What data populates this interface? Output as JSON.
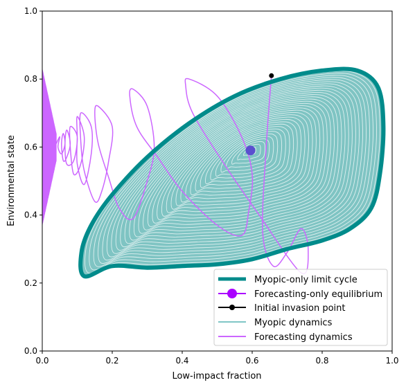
{
  "chart_data": {
    "type": "line",
    "title": "",
    "xlabel": "Low-impact fraction",
    "ylabel": "Environmental state",
    "xlim": [
      0,
      1
    ],
    "ylim": [
      0,
      1
    ],
    "xticks": [
      "0.0",
      "0.2",
      "0.4",
      "0.6",
      "0.8",
      "1.0"
    ],
    "yticks": [
      "0.0",
      "0.2",
      "0.4",
      "0.6",
      "0.8",
      "1.0"
    ],
    "grid": false,
    "legend_position": "lower-right",
    "series": [
      {
        "name": "Myopic-only limit cycle",
        "kind": "closed-curve",
        "color": "#008b8b",
        "points": [
          [
            0.2,
            0.25
          ],
          [
            0.12,
            0.22
          ],
          [
            0.112,
            0.29
          ],
          [
            0.14,
            0.37
          ],
          [
            0.2,
            0.46
          ],
          [
            0.3,
            0.57
          ],
          [
            0.42,
            0.67
          ],
          [
            0.55,
            0.75
          ],
          [
            0.68,
            0.8
          ],
          [
            0.8,
            0.825
          ],
          [
            0.9,
            0.825
          ],
          [
            0.96,
            0.775
          ],
          [
            0.975,
            0.66
          ],
          [
            0.965,
            0.52
          ],
          [
            0.94,
            0.42
          ],
          [
            0.88,
            0.36
          ],
          [
            0.8,
            0.325
          ],
          [
            0.7,
            0.3
          ],
          [
            0.6,
            0.27
          ],
          [
            0.5,
            0.255
          ],
          [
            0.4,
            0.25
          ],
          [
            0.3,
            0.245
          ]
        ]
      },
      {
        "name": "Forecasting-only equilibrium",
        "kind": "point",
        "color": "#aa00ff",
        "points": [
          [
            0.595,
            0.59
          ]
        ]
      },
      {
        "name": "Initial invasion point",
        "kind": "point",
        "color": "#000000",
        "points": [
          [
            0.655,
            0.81
          ]
        ]
      },
      {
        "name": "Myopic dynamics",
        "kind": "spiral",
        "color": "#7fc6c6",
        "center": [
          0.53,
          0.56
        ],
        "equilibrium": [
          0.595,
          0.59
        ]
      },
      {
        "name": "Forecasting dynamics",
        "kind": "trajectory",
        "color": "#cc66ff",
        "points": [
          [
            0.655,
            0.81
          ],
          [
            0.64,
            0.6
          ],
          [
            0.63,
            0.35
          ],
          [
            0.66,
            0.25
          ],
          [
            0.7,
            0.29
          ],
          [
            0.74,
            0.36
          ],
          [
            0.76,
            0.3
          ],
          [
            0.74,
            0.23
          ],
          [
            0.62,
            0.4
          ],
          [
            0.52,
            0.55
          ],
          [
            0.43,
            0.7
          ],
          [
            0.41,
            0.78
          ],
          [
            0.42,
            0.8
          ],
          [
            0.5,
            0.75
          ],
          [
            0.57,
            0.63
          ],
          [
            0.6,
            0.52
          ],
          [
            0.59,
            0.41
          ],
          [
            0.57,
            0.34
          ],
          [
            0.5,
            0.37
          ],
          [
            0.4,
            0.47
          ],
          [
            0.33,
            0.57
          ],
          [
            0.27,
            0.66
          ],
          [
            0.25,
            0.75
          ],
          [
            0.26,
            0.77
          ],
          [
            0.3,
            0.72
          ],
          [
            0.32,
            0.6
          ],
          [
            0.3,
            0.5
          ],
          [
            0.26,
            0.39
          ],
          [
            0.22,
            0.42
          ],
          [
            0.19,
            0.51
          ],
          [
            0.16,
            0.61
          ],
          [
            0.15,
            0.7
          ],
          [
            0.16,
            0.72
          ],
          [
            0.2,
            0.66
          ],
          [
            0.19,
            0.56
          ],
          [
            0.17,
            0.47
          ],
          [
            0.15,
            0.44
          ],
          [
            0.12,
            0.53
          ],
          [
            0.11,
            0.62
          ],
          [
            0.11,
            0.7
          ],
          [
            0.14,
            0.66
          ],
          [
            0.14,
            0.58
          ],
          [
            0.12,
            0.49
          ],
          [
            0.1,
            0.55
          ],
          [
            0.1,
            0.63
          ],
          [
            0.1,
            0.69
          ],
          [
            0.12,
            0.63
          ],
          [
            0.11,
            0.55
          ],
          [
            0.09,
            0.52
          ],
          [
            0.08,
            0.6
          ],
          [
            0.08,
            0.66
          ],
          [
            0.1,
            0.63
          ],
          [
            0.09,
            0.56
          ],
          [
            0.07,
            0.55
          ],
          [
            0.065,
            0.61
          ],
          [
            0.07,
            0.65
          ],
          [
            0.08,
            0.61
          ],
          [
            0.07,
            0.57
          ],
          [
            0.06,
            0.56
          ],
          [
            0.055,
            0.61
          ],
          [
            0.06,
            0.64
          ],
          [
            0.065,
            0.61
          ],
          [
            0.055,
            0.58
          ],
          [
            0.045,
            0.6
          ],
          [
            0.05,
            0.63
          ],
          [
            0.04,
            0.61
          ]
        ],
        "tail": {
          "x_end": 0.04,
          "y_mid": 0.6,
          "amplitude_start": 0.04,
          "amplitude_end": 0.23,
          "oscillations": 70
        }
      }
    ]
  }
}
